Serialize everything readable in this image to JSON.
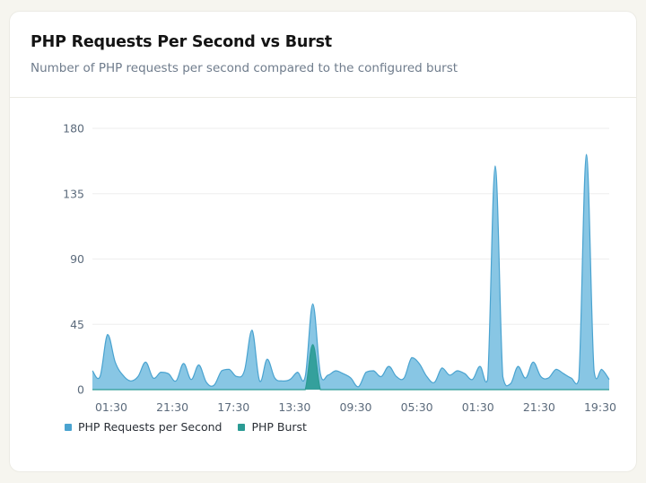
{
  "card": {
    "title": "PHP Requests Per Second vs Burst",
    "subtitle": "Number of PHP requests per second compared to the configured burst"
  },
  "colors": {
    "requests_fill": "#82c3e3",
    "requests_stroke": "#4aa3d0",
    "burst_fill": "#2b9b94",
    "gridline": "#eeeeee"
  },
  "chart_data": {
    "type": "area",
    "ylim": [
      0,
      180
    ],
    "yticks": [
      0,
      45,
      90,
      135,
      180
    ],
    "xtick_labels": [
      "01:30",
      "21:30",
      "17:30",
      "13:30",
      "09:30",
      "05:30",
      "01:30",
      "21:30",
      "19:30"
    ],
    "grid": "horizontal",
    "legend_position": "bottom-left",
    "series": [
      {
        "name": "PHP Requests per Second",
        "color": "#4aa3d0",
        "values": [
          13,
          9,
          38,
          19,
          10,
          6,
          9,
          19,
          8,
          12,
          11,
          6,
          18,
          7,
          17,
          5,
          3,
          13,
          14,
          9,
          13,
          41,
          6,
          21,
          8,
          6,
          7,
          12,
          9,
          59,
          11,
          10,
          13,
          11,
          8,
          2,
          12,
          13,
          9,
          16,
          9,
          8,
          22,
          18,
          9,
          5,
          15,
          10,
          13,
          11,
          7,
          16,
          7,
          154,
          9,
          4,
          16,
          8,
          19,
          9,
          8,
          14,
          11,
          8,
          7,
          162,
          13,
          14,
          7
        ]
      },
      {
        "name": "PHP Burst",
        "color": "#2b9b94",
        "values": [
          0,
          0,
          0,
          0,
          0,
          0,
          0,
          0,
          0,
          0,
          0,
          0,
          0,
          0,
          0,
          0,
          0,
          0,
          0,
          0,
          0,
          0,
          0,
          0,
          0,
          0,
          0,
          0,
          0,
          31,
          0,
          0,
          0,
          0,
          0,
          0,
          0,
          0,
          0,
          0,
          0,
          0,
          0,
          0,
          0,
          0,
          0,
          0,
          0,
          0,
          0,
          0,
          0,
          0,
          0,
          0,
          0,
          0,
          0,
          0,
          0,
          0,
          0,
          0,
          0,
          0,
          0,
          0,
          0
        ]
      }
    ]
  }
}
